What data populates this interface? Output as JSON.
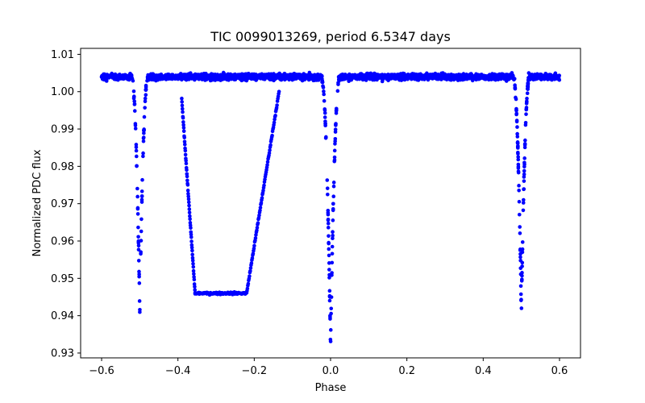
{
  "chart_data": {
    "type": "scatter",
    "title": "TIC 0099013269, period 6.5347 days",
    "xlabel": "Phase",
    "ylabel": "Normalized PDC flux",
    "xlim": [
      -0.655,
      0.655
    ],
    "ylim": [
      0.9287,
      1.0116
    ],
    "xticks": [
      -0.6,
      -0.4,
      -0.2,
      0.0,
      0.2,
      0.4,
      0.6
    ],
    "xtick_labels": [
      "−0.6",
      "−0.4",
      "−0.2",
      "0.0",
      "0.2",
      "0.4",
      "0.6"
    ],
    "yticks": [
      0.93,
      0.94,
      0.95,
      0.96,
      0.97,
      0.98,
      0.99,
      1.0,
      1.01
    ],
    "ytick_labels": [
      "0.93",
      "0.94",
      "0.95",
      "0.96",
      "0.97",
      "0.98",
      "0.99",
      "1.00",
      "1.01"
    ],
    "grid": false,
    "series": [
      {
        "color": "#0000ff",
        "marker": "dot",
        "baseline_flux": 1.004,
        "baseline_scatter": 0.003,
        "primary_eclipse": {
          "center_phase": 0.0,
          "min_flux": 0.932
        },
        "secondary_eclipse_left": {
          "center_phase": -0.5,
          "min_flux": 0.941
        },
        "secondary_eclipse_right": {
          "center_phase": 0.5,
          "min_flux": 0.941
        },
        "transit_feature": {
          "ingress_start_phase": -0.39,
          "ingress_start_flux": 0.998,
          "flat_bottom_start_phase": -0.355,
          "flat_bottom_end_phase": -0.22,
          "flat_bottom_flux": 0.946,
          "egress_end_phase": -0.135,
          "egress_end_flux": 1.0
        },
        "phase_range": [
          -0.6,
          0.6
        ]
      }
    ]
  }
}
